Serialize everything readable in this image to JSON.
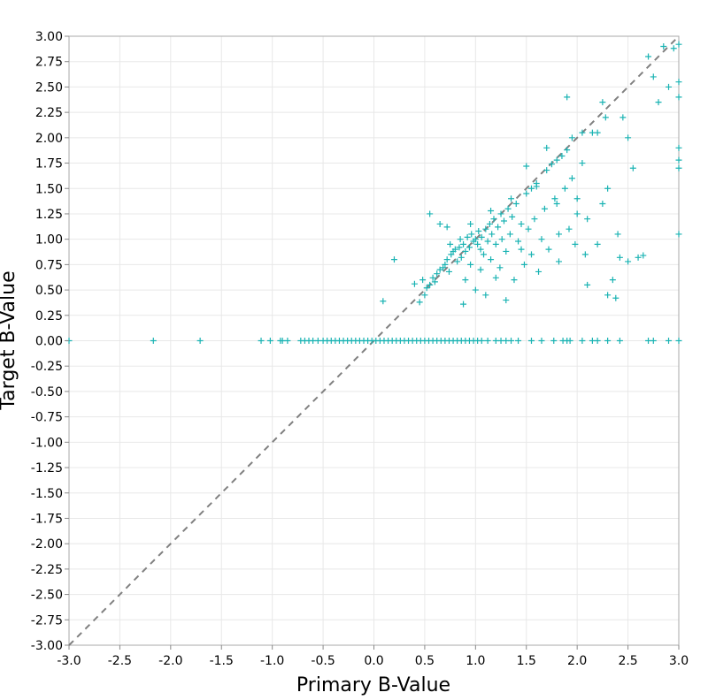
{
  "chart_data": {
    "type": "scatter",
    "title": "",
    "xlabel": "Primary B-Value",
    "ylabel": "Target B-Value",
    "xlim": [
      -3.0,
      3.0
    ],
    "ylim": [
      -3.0,
      3.0
    ],
    "grid": true,
    "marker": "plus",
    "marker_color": "#1ab3b3",
    "reference_line": {
      "style": "dashed",
      "color": "#808080",
      "from": [
        -3.0,
        -3.0
      ],
      "to": [
        3.0,
        3.0
      ]
    },
    "x_ticks": [
      "-3.0",
      "-2.5",
      "-2.0",
      "-1.5",
      "-1.0",
      "-0.5",
      "0.0",
      "0.5",
      "1.0",
      "1.5",
      "2.0",
      "2.5",
      "3.0"
    ],
    "y_ticks": [
      "3.00",
      "2.75",
      "2.50",
      "2.25",
      "2.00",
      "1.75",
      "1.50",
      "1.25",
      "1.00",
      "0.75",
      "0.50",
      "0.25",
      "0.00",
      "-0.25",
      "-0.50",
      "-0.75",
      "-1.00",
      "-1.25",
      "-1.50",
      "-1.75",
      "-2.00",
      "-2.25",
      "-2.50",
      "-2.75",
      "-3.00"
    ],
    "points": [
      [
        -3.0,
        0
      ],
      [
        -2.17,
        0
      ],
      [
        -1.71,
        0
      ],
      [
        -1.11,
        0
      ],
      [
        -1.02,
        0
      ],
      [
        -0.92,
        0
      ],
      [
        -0.9,
        0
      ],
      [
        -0.85,
        0
      ],
      [
        -0.72,
        0
      ],
      [
        -0.68,
        0
      ],
      [
        -0.64,
        0
      ],
      [
        -0.6,
        0
      ],
      [
        -0.55,
        0
      ],
      [
        -0.5,
        0
      ],
      [
        -0.46,
        0
      ],
      [
        -0.42,
        0
      ],
      [
        -0.38,
        0
      ],
      [
        -0.34,
        0
      ],
      [
        -0.3,
        0
      ],
      [
        -0.26,
        0
      ],
      [
        -0.22,
        0
      ],
      [
        -0.18,
        0
      ],
      [
        -0.14,
        0
      ],
      [
        -0.1,
        0
      ],
      [
        -0.06,
        0
      ],
      [
        -0.02,
        0
      ],
      [
        0.02,
        0
      ],
      [
        0.06,
        0
      ],
      [
        0.1,
        0
      ],
      [
        0.14,
        0
      ],
      [
        0.18,
        0
      ],
      [
        0.22,
        0
      ],
      [
        0.26,
        0
      ],
      [
        0.3,
        0
      ],
      [
        0.34,
        0
      ],
      [
        0.38,
        0
      ],
      [
        0.42,
        0
      ],
      [
        0.46,
        0
      ],
      [
        0.5,
        0
      ],
      [
        0.54,
        0
      ],
      [
        0.58,
        0
      ],
      [
        0.62,
        0
      ],
      [
        0.66,
        0
      ],
      [
        0.7,
        0
      ],
      [
        0.74,
        0
      ],
      [
        0.78,
        0
      ],
      [
        0.82,
        0
      ],
      [
        0.86,
        0
      ],
      [
        0.9,
        0
      ],
      [
        0.94,
        0
      ],
      [
        0.98,
        0
      ],
      [
        1.02,
        0
      ],
      [
        1.06,
        0
      ],
      [
        1.12,
        0
      ],
      [
        1.2,
        0
      ],
      [
        1.25,
        0
      ],
      [
        1.3,
        0
      ],
      [
        1.35,
        0
      ],
      [
        1.42,
        0
      ],
      [
        1.55,
        0
      ],
      [
        1.65,
        0
      ],
      [
        1.77,
        0
      ],
      [
        1.86,
        0
      ],
      [
        1.9,
        0
      ],
      [
        1.93,
        0
      ],
      [
        2.05,
        0
      ],
      [
        2.15,
        0
      ],
      [
        2.2,
        0
      ],
      [
        2.3,
        0
      ],
      [
        2.42,
        0
      ],
      [
        2.7,
        0
      ],
      [
        2.75,
        0
      ],
      [
        2.9,
        0
      ],
      [
        3.0,
        0
      ],
      [
        0.09,
        0.39
      ],
      [
        0.2,
        0.8
      ],
      [
        0.4,
        0.56
      ],
      [
        0.45,
        0.38
      ],
      [
        0.48,
        0.6
      ],
      [
        0.5,
        0.45
      ],
      [
        0.52,
        0.52
      ],
      [
        0.55,
        0.55
      ],
      [
        0.58,
        0.62
      ],
      [
        0.6,
        0.58
      ],
      [
        0.62,
        0.66
      ],
      [
        0.65,
        0.7
      ],
      [
        0.68,
        0.72
      ],
      [
        0.7,
        0.75
      ],
      [
        0.72,
        0.8
      ],
      [
        0.74,
        0.68
      ],
      [
        0.75,
        0.95
      ],
      [
        0.76,
        0.85
      ],
      [
        0.78,
        0.88
      ],
      [
        0.8,
        0.9
      ],
      [
        0.82,
        0.78
      ],
      [
        0.84,
        0.92
      ],
      [
        0.85,
        1.0
      ],
      [
        0.86,
        0.82
      ],
      [
        0.88,
        0.95
      ],
      [
        0.9,
        0.88
      ],
      [
        0.92,
        1.02
      ],
      [
        0.94,
        0.92
      ],
      [
        0.95,
        0.75
      ],
      [
        0.96,
        1.05
      ],
      [
        0.98,
        0.98
      ],
      [
        1.0,
        1.0
      ],
      [
        1.02,
        0.95
      ],
      [
        1.03,
        1.08
      ],
      [
        1.05,
        0.9
      ],
      [
        1.06,
        1.02
      ],
      [
        1.08,
        0.85
      ],
      [
        1.1,
        1.1
      ],
      [
        1.12,
        0.98
      ],
      [
        1.14,
        1.15
      ],
      [
        1.15,
        0.8
      ],
      [
        1.16,
        1.05
      ],
      [
        1.18,
        1.2
      ],
      [
        1.2,
        0.95
      ],
      [
        1.22,
        1.12
      ],
      [
        1.24,
        0.72
      ],
      [
        1.25,
        1.25
      ],
      [
        1.26,
        1.0
      ],
      [
        1.28,
        1.18
      ],
      [
        1.3,
        0.88
      ],
      [
        1.32,
        1.3
      ],
      [
        1.34,
        1.05
      ],
      [
        1.36,
        1.22
      ],
      [
        1.38,
        0.6
      ],
      [
        1.4,
        1.35
      ],
      [
        1.42,
        0.98
      ],
      [
        1.45,
        1.15
      ],
      [
        1.48,
        0.75
      ],
      [
        1.5,
        1.45
      ],
      [
        1.52,
        1.1
      ],
      [
        1.55,
        0.85
      ],
      [
        1.58,
        1.2
      ],
      [
        1.6,
        1.55
      ],
      [
        1.62,
        0.68
      ],
      [
        1.65,
        1.0
      ],
      [
        1.68,
        1.3
      ],
      [
        1.7,
        1.68
      ],
      [
        1.72,
        0.9
      ],
      [
        1.75,
        1.74
      ],
      [
        1.78,
        1.4
      ],
      [
        1.8,
        1.78
      ],
      [
        1.82,
        0.78
      ],
      [
        1.85,
        1.82
      ],
      [
        1.88,
        1.5
      ],
      [
        1.9,
        1.88
      ],
      [
        1.92,
        1.1
      ],
      [
        1.95,
        1.6
      ],
      [
        1.98,
        0.95
      ],
      [
        2.0,
        1.4
      ],
      [
        2.05,
        1.75
      ],
      [
        2.08,
        0.85
      ],
      [
        2.1,
        1.2
      ],
      [
        2.15,
        2.05
      ],
      [
        2.2,
        0.95
      ],
      [
        2.25,
        1.35
      ],
      [
        2.28,
        2.2
      ],
      [
        2.3,
        1.5
      ],
      [
        2.35,
        0.6
      ],
      [
        2.4,
        1.05
      ],
      [
        2.45,
        2.2
      ],
      [
        2.5,
        2.0
      ],
      [
        2.55,
        1.7
      ],
      [
        2.6,
        0.82
      ],
      [
        2.65,
        0.84
      ],
      [
        2.7,
        2.8
      ],
      [
        2.75,
        2.6
      ],
      [
        2.8,
        2.35
      ],
      [
        2.85,
        2.9
      ],
      [
        2.9,
        2.5
      ],
      [
        2.95,
        2.88
      ],
      [
        3.0,
        2.92
      ],
      [
        0.55,
        1.25
      ],
      [
        0.65,
        1.15
      ],
      [
        0.72,
        1.12
      ],
      [
        0.9,
        0.6
      ],
      [
        1.0,
        0.5
      ],
      [
        1.1,
        0.45
      ],
      [
        1.3,
        0.4
      ],
      [
        1.5,
        1.72
      ],
      [
        1.6,
        1.52
      ],
      [
        1.82,
        1.05
      ],
      [
        2.0,
        1.25
      ],
      [
        2.1,
        0.55
      ],
      [
        2.3,
        0.45
      ],
      [
        2.5,
        0.78
      ],
      [
        3.0,
        1.05
      ],
      [
        3.0,
        1.7
      ],
      [
        3.0,
        1.78
      ],
      [
        3.0,
        1.9
      ],
      [
        3.0,
        2.55
      ],
      [
        3.0,
        2.4
      ],
      [
        1.8,
        1.35
      ],
      [
        2.42,
        0.82
      ],
      [
        2.38,
        0.42
      ],
      [
        1.45,
        0.9
      ],
      [
        1.2,
        0.62
      ],
      [
        0.88,
        0.36
      ],
      [
        1.05,
        0.7
      ],
      [
        1.35,
        1.4
      ],
      [
        1.15,
        1.28
      ],
      [
        0.95,
        1.15
      ],
      [
        2.25,
        2.35
      ],
      [
        2.2,
        2.05
      ],
      [
        1.9,
        2.4
      ],
      [
        1.95,
        2.0
      ],
      [
        1.7,
        1.9
      ],
      [
        1.55,
        1.5
      ],
      [
        2.05,
        2.05
      ]
    ]
  }
}
